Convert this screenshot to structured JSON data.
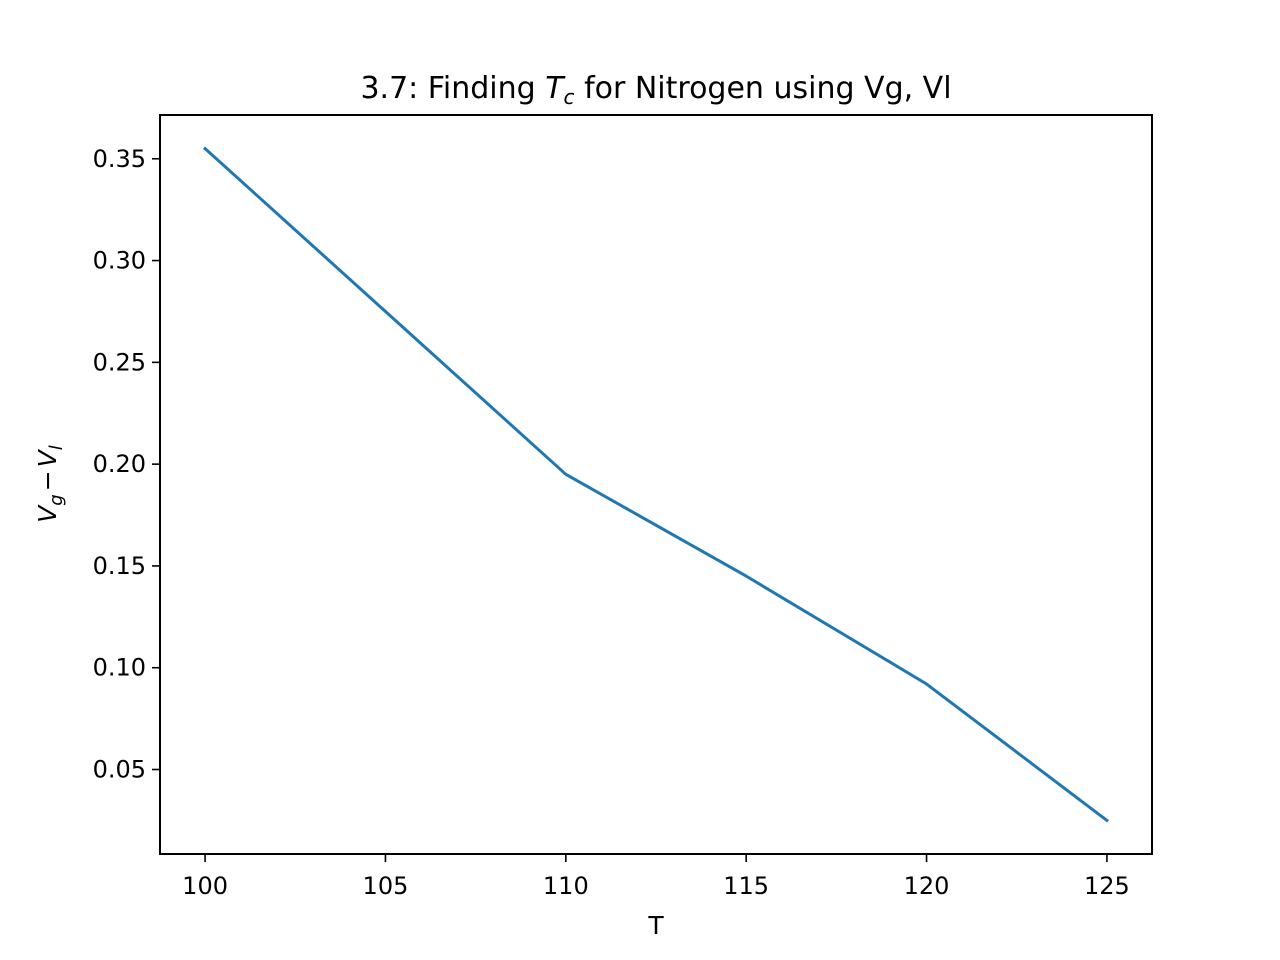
{
  "chart_data": {
    "type": "line",
    "title_prefix": "3.7: Finding ",
    "title_var": "T",
    "title_sub": "c",
    "title_suffix": " for Nitrogen using Vg, Vl",
    "xlabel": "T",
    "ylabel_a": "V",
    "ylabel_a_sub": "g",
    "ylabel_minus": "−",
    "ylabel_b": "V",
    "ylabel_b_sub": "l",
    "x": [
      100,
      110,
      115,
      120,
      125
    ],
    "series": [
      {
        "values": [
          0.355,
          0.195,
          0.145,
          0.092,
          0.025
        ]
      }
    ],
    "xlim": [
      98.75,
      126.25
    ],
    "ylim": [
      0.0085,
      0.3715
    ],
    "xticks": [
      100,
      105,
      110,
      115,
      120,
      125
    ],
    "xtick_labels": [
      "100",
      "105",
      "110",
      "115",
      "120",
      "125"
    ],
    "yticks": [
      0.05,
      0.1,
      0.15,
      0.2,
      0.25,
      0.3,
      0.35
    ],
    "ytick_labels": [
      "0.05",
      "0.10",
      "0.15",
      "0.20",
      "0.25",
      "0.30",
      "0.35"
    ],
    "grid": false,
    "line_color": "#1f77b4"
  }
}
